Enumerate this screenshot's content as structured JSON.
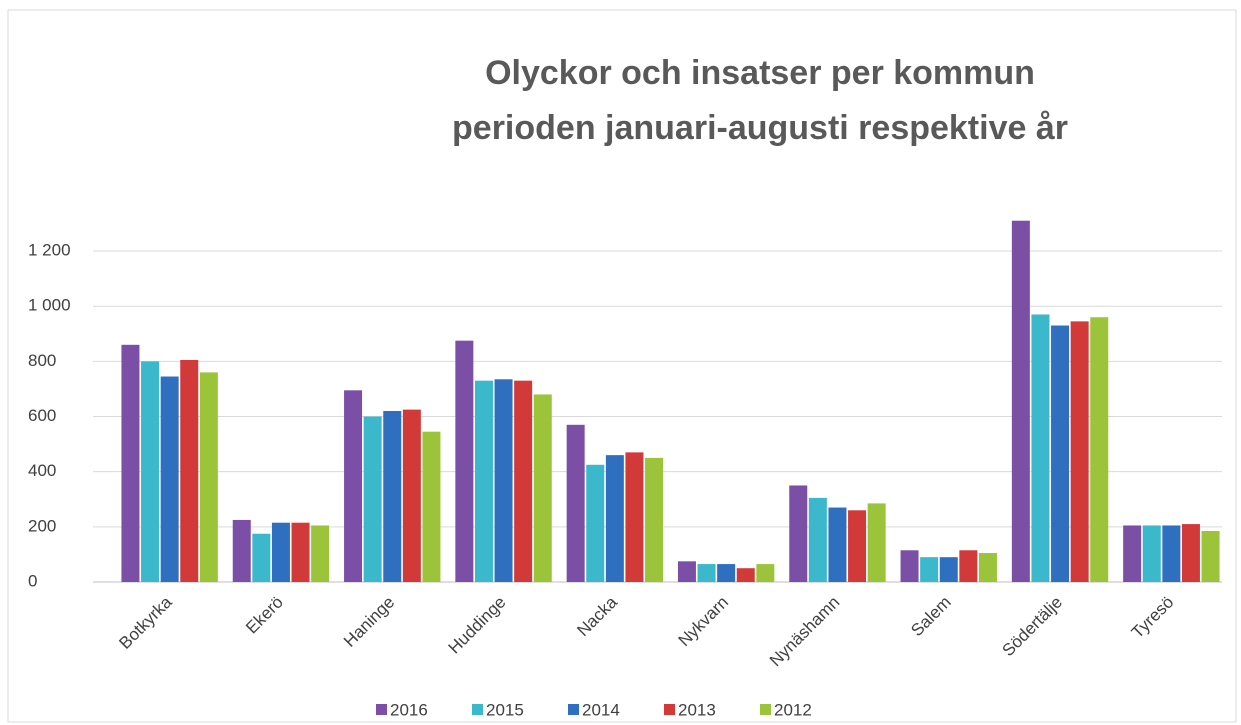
{
  "chart_data": {
    "type": "bar",
    "title": [
      "Olyckor och insatser per kommun",
      "perioden januari-augusti respektive år"
    ],
    "categories": [
      "Botkyrka",
      "Ekerö",
      "Haninge",
      "Huddinge",
      "Nacka",
      "Nykvarn",
      "Nynäshamn",
      "Salem",
      "Södertälje",
      "Tyresö"
    ],
    "series": [
      {
        "name": "2016",
        "color": "#7b4fa6",
        "values": [
          860,
          225,
          695,
          875,
          570,
          75,
          350,
          115,
          1310,
          205
        ]
      },
      {
        "name": "2015",
        "color": "#3bb8cc",
        "values": [
          800,
          175,
          600,
          730,
          425,
          65,
          305,
          90,
          970,
          205
        ]
      },
      {
        "name": "2014",
        "color": "#2f6fc0",
        "values": [
          745,
          215,
          620,
          735,
          460,
          65,
          270,
          90,
          930,
          205
        ]
      },
      {
        "name": "2013",
        "color": "#d23a3a",
        "values": [
          805,
          215,
          625,
          730,
          470,
          50,
          260,
          115,
          945,
          210
        ]
      },
      {
        "name": "2012",
        "color": "#9bc43a",
        "values": [
          760,
          205,
          545,
          680,
          450,
          65,
          285,
          105,
          960,
          185
        ]
      }
    ],
    "ylim": [
      0,
      1400
    ],
    "yticks": [
      0,
      200,
      400,
      600,
      800,
      {
        "value": 1000,
        "label": "1 000"
      },
      {
        "value": 1200,
        "label": "1 200"
      }
    ],
    "grid": true,
    "legend": "bottom"
  }
}
